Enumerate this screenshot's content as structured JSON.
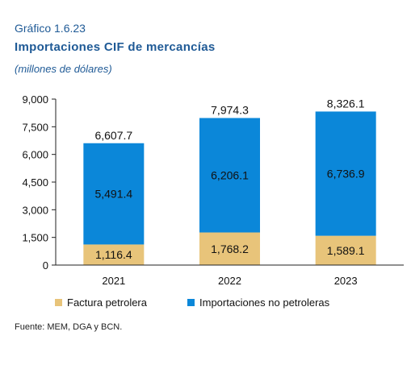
{
  "header": {
    "label": "Gráfico 1.6.23",
    "title": "Importaciones CIF de mercancías",
    "subtitle": "(millones de dólares)"
  },
  "chart_data": {
    "type": "bar",
    "stacked": true,
    "categories": [
      "2021",
      "2022",
      "2023"
    ],
    "series": [
      {
        "name": "Factura petrolera",
        "values": [
          1116.4,
          1768.2,
          1589.1
        ],
        "color": "#e8c47a"
      },
      {
        "name": "Importaciones no petroleras",
        "values": [
          5491.4,
          6206.1,
          6736.9
        ],
        "color": "#0b87d9"
      }
    ],
    "value_labels": [
      [
        "1,116.4",
        "1,768.2",
        "1,589.1"
      ],
      [
        "5,491.4",
        "6,206.1",
        "6,736.9"
      ]
    ],
    "totals": [
      6607.7,
      7974.3,
      8326.1
    ],
    "total_labels": [
      "6,607.7",
      "7,974.3",
      "8,326.1"
    ],
    "yticks": [
      0,
      1500,
      3000,
      4500,
      6000,
      7500,
      9000
    ],
    "ytick_labels": [
      "0",
      "1,500",
      "3,000",
      "4,500",
      "6,000",
      "7,500",
      "9,000"
    ],
    "ylim": [
      0,
      9000
    ],
    "grid": false,
    "legend_position": "bottom"
  },
  "source": "Fuente: MEM, DGA y BCN."
}
